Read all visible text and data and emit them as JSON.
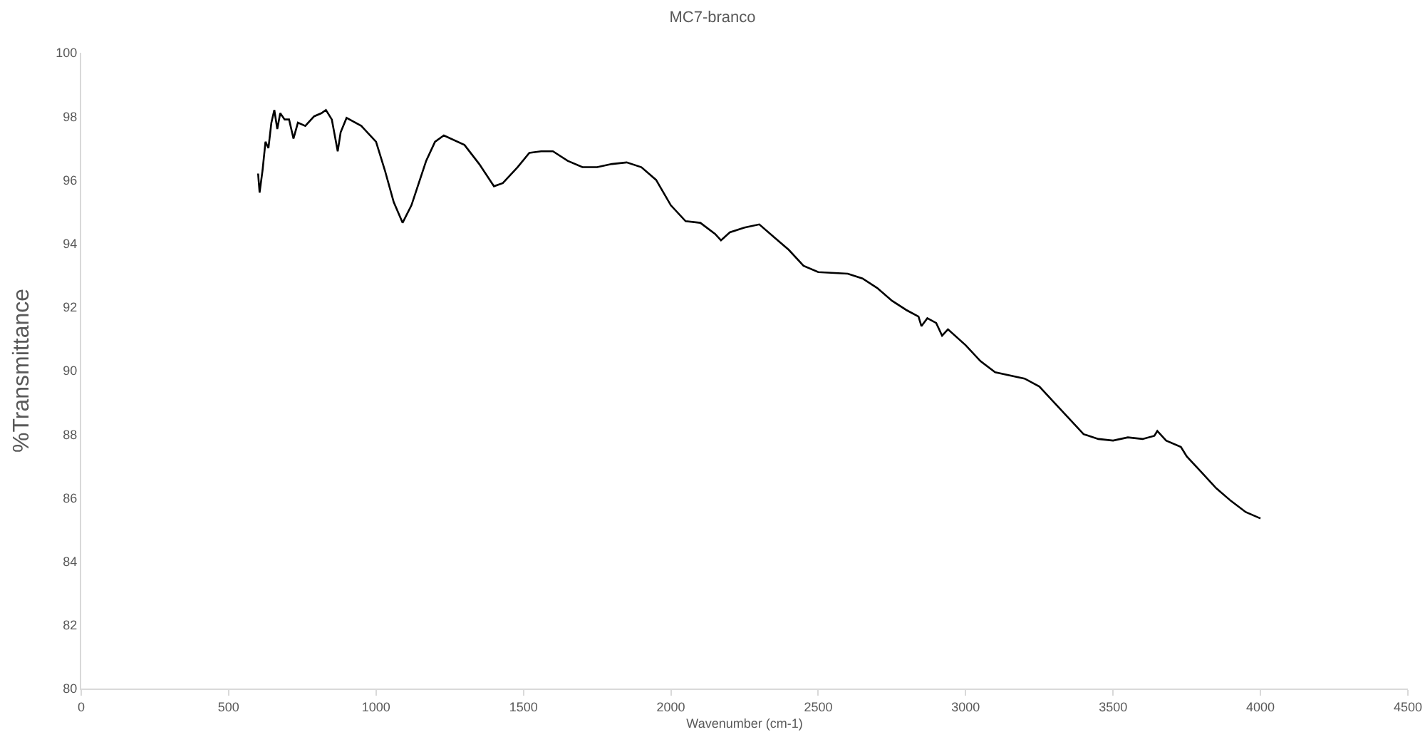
{
  "chart_data": {
    "type": "line",
    "title": "MC7-branco",
    "xlabel": "Wavenumber (cm-1)",
    "ylabel": "%Transmittance",
    "xlim": [
      0,
      4500
    ],
    "xticks": [
      0,
      500,
      1000,
      1500,
      2000,
      2500,
      3000,
      3500,
      4000,
      4500
    ],
    "ylim": [
      80,
      100
    ],
    "yticks": [
      80,
      82,
      84,
      86,
      88,
      90,
      92,
      94,
      96,
      98,
      100
    ],
    "grid": false,
    "marker": "none",
    "line_style": "solid",
    "series": [
      {
        "color": "#000000",
        "x": [
          600,
          605,
          615,
          625,
          635,
          645,
          655,
          665,
          675,
          690,
          705,
          720,
          735,
          760,
          790,
          815,
          830,
          850,
          870,
          880,
          900,
          950,
          1000,
          1030,
          1060,
          1090,
          1120,
          1170,
          1200,
          1230,
          1300,
          1350,
          1400,
          1430,
          1480,
          1520,
          1560,
          1600,
          1650,
          1700,
          1750,
          1800,
          1850,
          1900,
          1950,
          2000,
          2050,
          2100,
          2150,
          2170,
          2200,
          2250,
          2300,
          2350,
          2400,
          2450,
          2500,
          2600,
          2650,
          2700,
          2750,
          2800,
          2840,
          2850,
          2870,
          2900,
          2920,
          2940,
          3000,
          3050,
          3100,
          3200,
          3250,
          3300,
          3350,
          3400,
          3450,
          3500,
          3550,
          3600,
          3640,
          3650,
          3680,
          3730,
          3750,
          3800,
          3850,
          3900,
          3950,
          4000
        ],
        "values": [
          96.2,
          95.6,
          96.3,
          97.2,
          97.0,
          97.8,
          98.2,
          97.6,
          98.1,
          97.9,
          97.9,
          97.3,
          97.8,
          97.7,
          98.0,
          98.1,
          98.2,
          97.9,
          96.9,
          97.5,
          97.95,
          97.7,
          97.2,
          96.3,
          95.3,
          94.65,
          95.2,
          96.6,
          97.2,
          97.4,
          97.1,
          96.5,
          95.8,
          95.9,
          96.4,
          96.85,
          96.9,
          96.9,
          96.6,
          96.4,
          96.4,
          96.5,
          96.55,
          96.4,
          96.0,
          95.2,
          94.7,
          94.65,
          94.3,
          94.1,
          94.35,
          94.5,
          94.6,
          94.2,
          93.8,
          93.3,
          93.1,
          93.05,
          92.9,
          92.6,
          92.2,
          91.9,
          91.7,
          91.4,
          91.65,
          91.5,
          91.1,
          91.3,
          90.8,
          90.3,
          89.95,
          89.75,
          89.5,
          89.0,
          88.5,
          88.0,
          87.85,
          87.8,
          87.9,
          87.85,
          87.95,
          88.1,
          87.8,
          87.6,
          87.3,
          86.8,
          86.3,
          85.9,
          85.55,
          85.35
        ]
      }
    ]
  }
}
